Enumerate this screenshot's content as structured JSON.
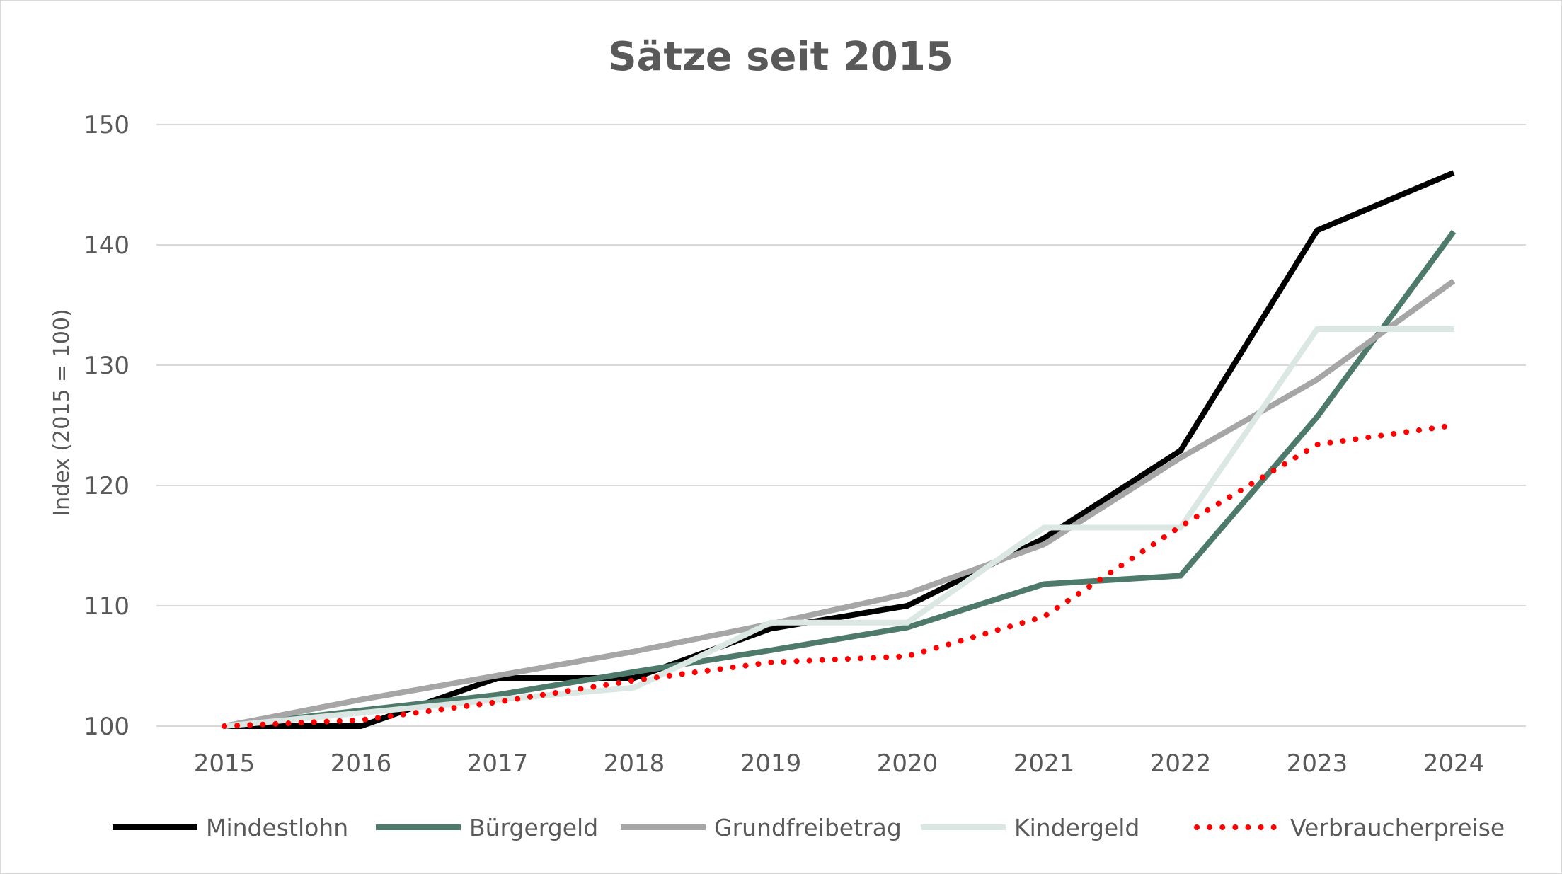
{
  "chart_data": {
    "type": "line",
    "title": "Sätze seit 2015",
    "xlabel": "",
    "ylabel": "Index (2015 = 100)",
    "categories": [
      "2015",
      "2016",
      "2017",
      "2018",
      "2019",
      "2020",
      "2021",
      "2022",
      "2023",
      "2024"
    ],
    "ylim": [
      100,
      150
    ],
    "yticks": [
      100,
      110,
      120,
      130,
      140,
      150
    ],
    "grid": true,
    "legend_position": "bottom",
    "series": [
      {
        "name": "Mindestlohn",
        "color": "#000000",
        "style": "solid",
        "values": [
          100,
          100,
          104,
          104,
          108.1,
          110,
          115.6,
          122.9,
          141.2,
          146
        ]
      },
      {
        "name": "Bürgergeld",
        "color": "#4e7a6c",
        "style": "solid",
        "values": [
          100,
          101.3,
          102.6,
          104.5,
          106.3,
          108.2,
          111.8,
          112.5,
          125.7,
          141.1
        ]
      },
      {
        "name": "Grundfreibetrag",
        "color": "#a6a6a6",
        "style": "solid",
        "values": [
          100,
          102.2,
          104.2,
          106.2,
          108.5,
          111,
          115.1,
          122.3,
          128.8,
          137
        ]
      },
      {
        "name": "Kindergeld",
        "color": "#dbe7e2",
        "style": "solid",
        "values": [
          100,
          101.1,
          102.2,
          103.2,
          108.6,
          108.6,
          116.5,
          116.5,
          133,
          133
        ]
      },
      {
        "name": "Verbraucherpreise",
        "color": "#ff0000",
        "style": "dotted",
        "values": [
          100,
          100.5,
          102,
          103.8,
          105.3,
          105.8,
          109.1,
          116.6,
          123.4,
          125
        ]
      }
    ]
  }
}
